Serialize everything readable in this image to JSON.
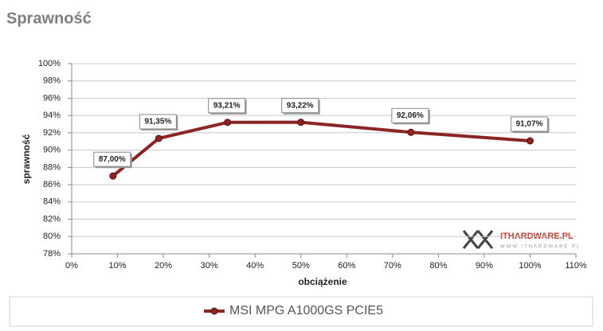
{
  "chart_data": {
    "type": "line",
    "title": "Sprawność",
    "x_label": "obciążenie",
    "y_label": "sprawność",
    "x": [
      9,
      19,
      34,
      50,
      74,
      100
    ],
    "series": [
      {
        "name": "MSI MPG A1000GS PCIE5",
        "color": "#8b2525",
        "values": [
          87.0,
          91.35,
          93.21,
          93.22,
          92.06,
          91.07
        ],
        "value_labels": [
          "87,00%",
          "91,35%",
          "93,21%",
          "93,22%",
          "92,06%",
          "91,07%"
        ]
      }
    ],
    "xlim": [
      0,
      110
    ],
    "xticks": [
      {
        "value": 0,
        "label": "0%"
      },
      {
        "value": 10,
        "label": "10%"
      },
      {
        "value": 20,
        "label": "20%"
      },
      {
        "value": 30,
        "label": "30%"
      },
      {
        "value": 40,
        "label": "40%"
      },
      {
        "value": 50,
        "label": "50%"
      },
      {
        "value": 60,
        "label": "60%"
      },
      {
        "value": 70,
        "label": "70%"
      },
      {
        "value": 80,
        "label": "80%"
      },
      {
        "value": 90,
        "label": "90%"
      },
      {
        "value": 100,
        "label": "100%"
      },
      {
        "value": 110,
        "label": "110%"
      }
    ],
    "ylim": [
      78,
      100
    ],
    "yticks": [
      {
        "value": 78,
        "label": "78%"
      },
      {
        "value": 80,
        "label": "80%"
      },
      {
        "value": 82,
        "label": "82%"
      },
      {
        "value": 84,
        "label": "84%"
      },
      {
        "value": 86,
        "label": "86%"
      },
      {
        "value": 88,
        "label": "88%"
      },
      {
        "value": 90,
        "label": "90%"
      },
      {
        "value": 92,
        "label": "92%"
      },
      {
        "value": 94,
        "label": "94%"
      },
      {
        "value": 96,
        "label": "96%"
      },
      {
        "value": 98,
        "label": "98%"
      },
      {
        "value": 100,
        "label": "100%"
      }
    ],
    "grid": true,
    "watermark": {
      "brand": "ITHARDWARE.PL",
      "url": "WWW.ITHARDWARE.PL"
    }
  }
}
